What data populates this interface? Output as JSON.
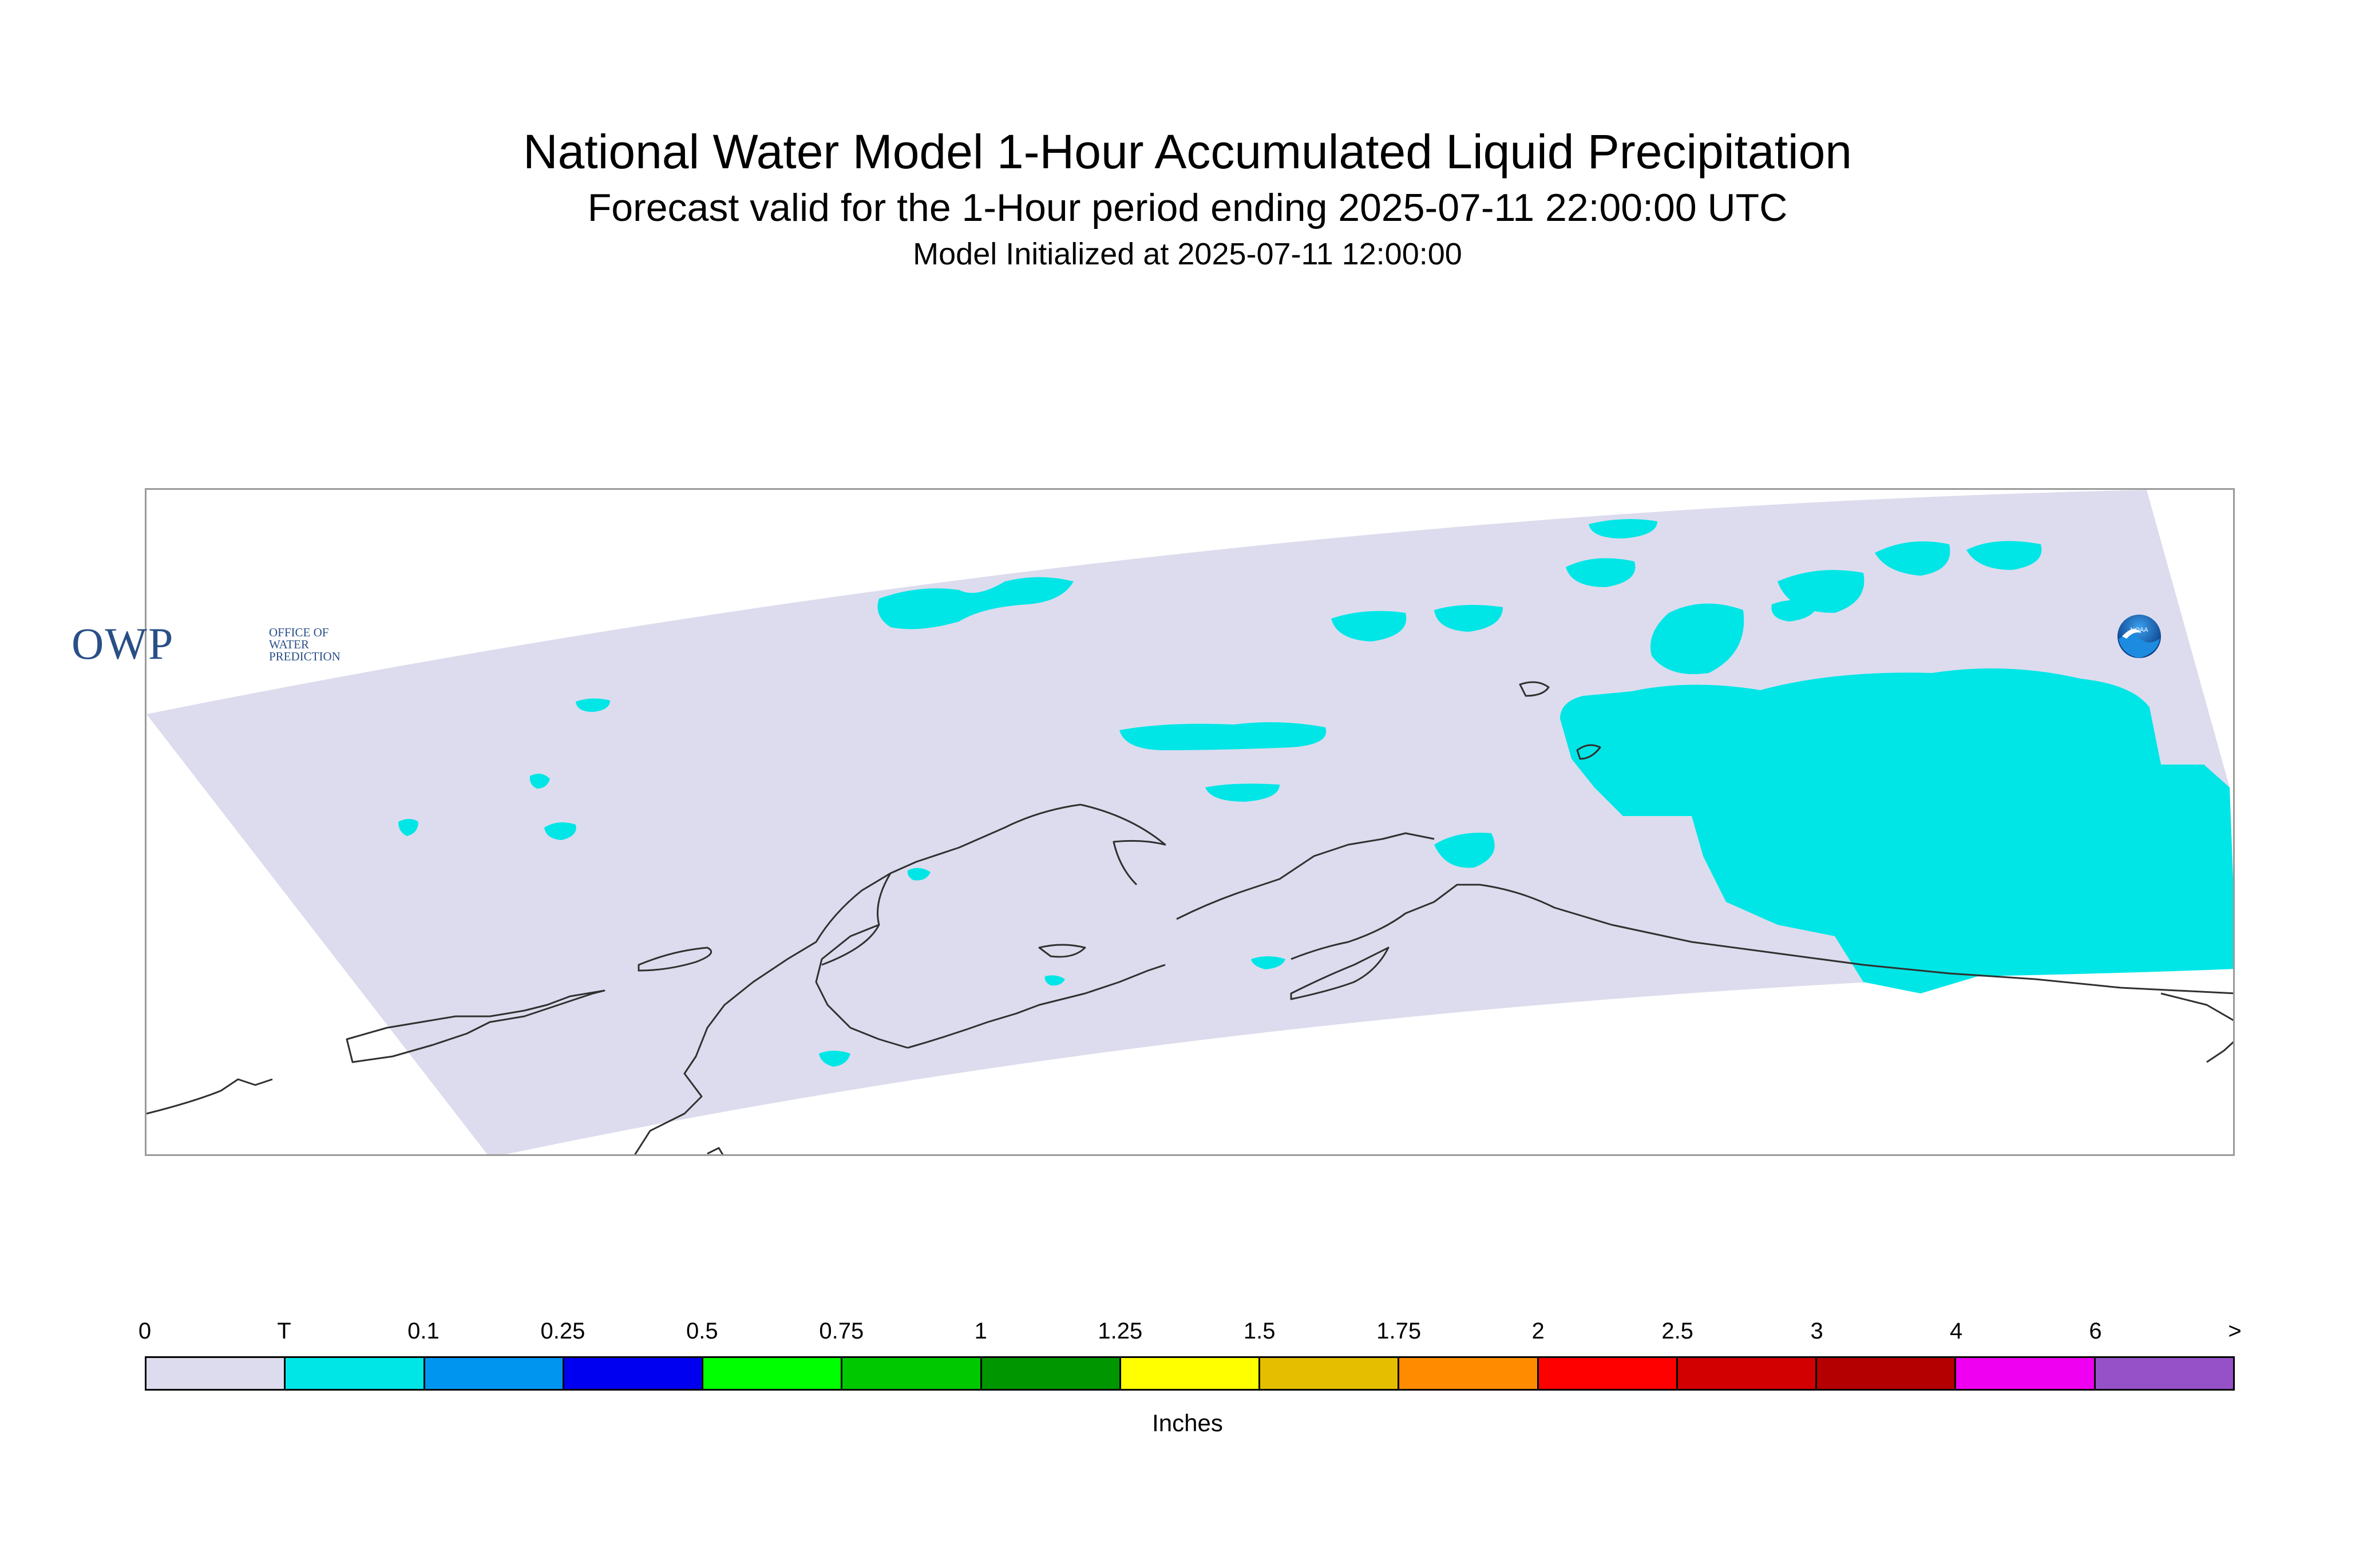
{
  "header": {
    "title": "National Water Model 1-Hour Accumulated Liquid Precipitation",
    "subtitle": "Forecast valid for the 1-Hour period ending 2025-07-11 22:00:00 UTC",
    "init_line": "Model Initialized at 2025-07-11 12:00:00"
  },
  "legend": {
    "ticks": [
      "0",
      "T",
      "0.1",
      "0.25",
      "0.5",
      "0.75",
      "1",
      "1.25",
      "1.5",
      "1.75",
      "2",
      "2.5",
      "3",
      "4",
      "6",
      ">"
    ],
    "colors": [
      "#dcdcee",
      "#00e6e6",
      "#0096f0",
      "#0000f0",
      "#00ff00",
      "#00c800",
      "#009600",
      "#ffff00",
      "#e6be00",
      "#ff8c00",
      "#ff0000",
      "#d20000",
      "#b40000",
      "#f000f0",
      "#9650c8"
    ],
    "units": "Inches"
  },
  "logos": {
    "owp_text": "OWP",
    "owp_subtext": [
      "OFFICE OF",
      "WATER",
      "PREDICTION"
    ],
    "noaa_text": "NOAA"
  },
  "colors": {
    "domain_fill": "#dcdcee",
    "trace_precip": "#00e6e6",
    "coastline": "#303030"
  }
}
